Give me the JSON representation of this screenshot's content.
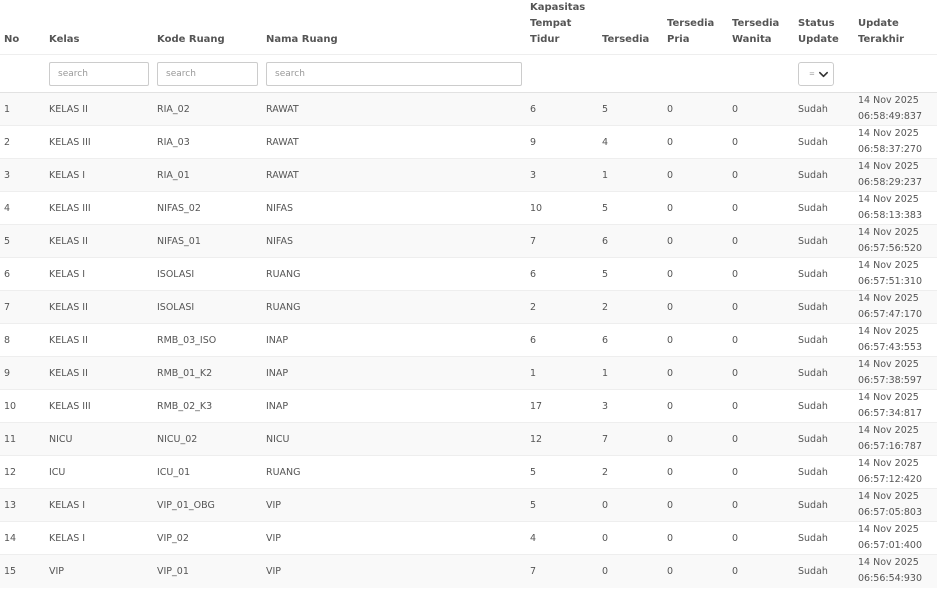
{
  "headers": {
    "no": "No",
    "kelas": "Kelas",
    "kode_ruang": "Kode Ruang",
    "nama_ruang": "Nama Ruang",
    "kapasitas": [
      "Kapasitas",
      "Tempat",
      "Tidur"
    ],
    "tersedia": "Tersedia",
    "tersedia_pria": [
      "Tersedia",
      "Pria"
    ],
    "tersedia_wanita": [
      "Tersedia",
      "Wanita"
    ],
    "status_update": [
      "Status",
      "Update"
    ],
    "update_terakhir": [
      "Update",
      "Terakhir"
    ]
  },
  "filters": {
    "kelas_placeholder": "search",
    "kode_placeholder": "search",
    "nama_placeholder": "search",
    "status_value": "="
  },
  "rows": [
    {
      "no": "1",
      "kelas": "KELAS II",
      "kode": "RIA_02",
      "nama": "RAWAT",
      "kapasitas": "6",
      "tersedia": "5",
      "pria": "0",
      "wanita": "0",
      "status": "Sudah",
      "date": "14 Nov 2025",
      "time": "06:58:49:837"
    },
    {
      "no": "2",
      "kelas": "KELAS III",
      "kode": "RIA_03",
      "nama": "RAWAT",
      "kapasitas": "9",
      "tersedia": "4",
      "pria": "0",
      "wanita": "0",
      "status": "Sudah",
      "date": "14 Nov 2025",
      "time": "06:58:37:270"
    },
    {
      "no": "3",
      "kelas": "KELAS I",
      "kode": "RIA_01",
      "nama": "RAWAT",
      "kapasitas": "3",
      "tersedia": "1",
      "pria": "0",
      "wanita": "0",
      "status": "Sudah",
      "date": "14 Nov 2025",
      "time": "06:58:29:237"
    },
    {
      "no": "4",
      "kelas": "KELAS III",
      "kode": "NIFAS_02",
      "nama": "NIFAS",
      "kapasitas": "10",
      "tersedia": "5",
      "pria": "0",
      "wanita": "0",
      "status": "Sudah",
      "date": "14 Nov 2025",
      "time": "06:58:13:383"
    },
    {
      "no": "5",
      "kelas": "KELAS II",
      "kode": "NIFAS_01",
      "nama": "NIFAS",
      "kapasitas": "7",
      "tersedia": "6",
      "pria": "0",
      "wanita": "0",
      "status": "Sudah",
      "date": "14 Nov 2025",
      "time": "06:57:56:520"
    },
    {
      "no": "6",
      "kelas": "KELAS I",
      "kode": "ISOLASI",
      "nama": "RUANG",
      "kapasitas": "6",
      "tersedia": "5",
      "pria": "0",
      "wanita": "0",
      "status": "Sudah",
      "date": "14 Nov 2025",
      "time": "06:57:51:310"
    },
    {
      "no": "7",
      "kelas": "KELAS II",
      "kode": "ISOLASI",
      "nama": "RUANG",
      "kapasitas": "2",
      "tersedia": "2",
      "pria": "0",
      "wanita": "0",
      "status": "Sudah",
      "date": "14 Nov 2025",
      "time": "06:57:47:170"
    },
    {
      "no": "8",
      "kelas": "KELAS II",
      "kode": "RMB_03_ISO",
      "nama": "INAP",
      "kapasitas": "6",
      "tersedia": "6",
      "pria": "0",
      "wanita": "0",
      "status": "Sudah",
      "date": "14 Nov 2025",
      "time": "06:57:43:553"
    },
    {
      "no": "9",
      "kelas": "KELAS II",
      "kode": "RMB_01_K2",
      "nama": "INAP",
      "kapasitas": "1",
      "tersedia": "1",
      "pria": "0",
      "wanita": "0",
      "status": "Sudah",
      "date": "14 Nov 2025",
      "time": "06:57:38:597"
    },
    {
      "no": "10",
      "kelas": "KELAS III",
      "kode": "RMB_02_K3",
      "nama": "INAP",
      "kapasitas": "17",
      "tersedia": "3",
      "pria": "0",
      "wanita": "0",
      "status": "Sudah",
      "date": "14 Nov 2025",
      "time": "06:57:34:817"
    },
    {
      "no": "11",
      "kelas": "NICU",
      "kode": "NICU_02",
      "nama": "NICU",
      "kapasitas": "12",
      "tersedia": "7",
      "pria": "0",
      "wanita": "0",
      "status": "Sudah",
      "date": "14 Nov 2025",
      "time": "06:57:16:787"
    },
    {
      "no": "12",
      "kelas": "ICU",
      "kode": "ICU_01",
      "nama": "RUANG",
      "kapasitas": "5",
      "tersedia": "2",
      "pria": "0",
      "wanita": "0",
      "status": "Sudah",
      "date": "14 Nov 2025",
      "time": "06:57:12:420"
    },
    {
      "no": "13",
      "kelas": "KELAS I",
      "kode": "VIP_01_OBG",
      "nama": "VIP",
      "kapasitas": "5",
      "tersedia": "0",
      "pria": "0",
      "wanita": "0",
      "status": "Sudah",
      "date": "14 Nov 2025",
      "time": "06:57:05:803"
    },
    {
      "no": "14",
      "kelas": "KELAS I",
      "kode": "VIP_02",
      "nama": "VIP",
      "kapasitas": "4",
      "tersedia": "0",
      "pria": "0",
      "wanita": "0",
      "status": "Sudah",
      "date": "14 Nov 2025",
      "time": "06:57:01:400"
    },
    {
      "no": "15",
      "kelas": "VIP",
      "kode": "VIP_01",
      "nama": "VIP",
      "kapasitas": "7",
      "tersedia": "0",
      "pria": "0",
      "wanita": "0",
      "status": "Sudah",
      "date": "14 Nov 2025",
      "time": "06:56:54:930"
    }
  ]
}
